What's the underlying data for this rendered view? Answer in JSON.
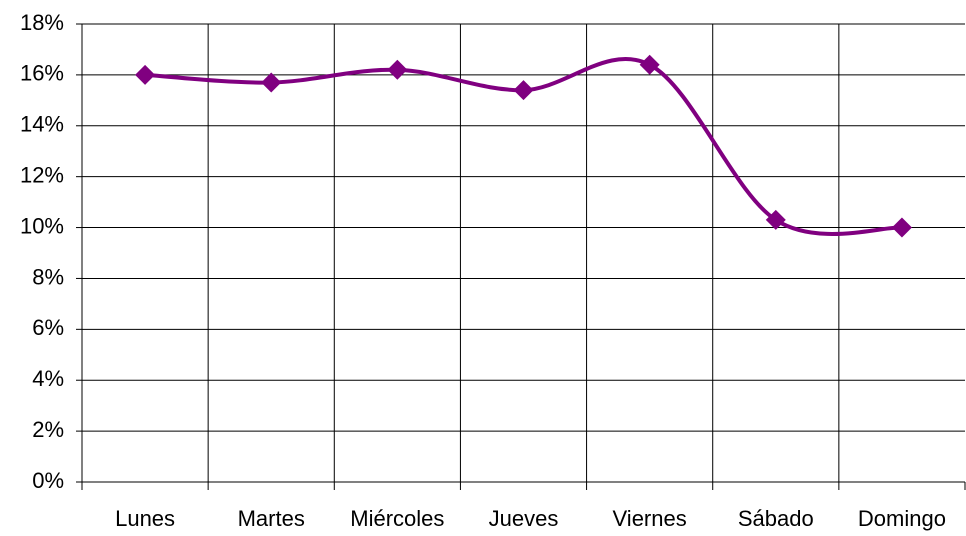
{
  "chart_data": {
    "type": "line",
    "categories": [
      "Lunes",
      "Martes",
      "Miércoles",
      "Jueves",
      "Viernes",
      "Sábado",
      "Domingo"
    ],
    "values": [
      16,
      15.7,
      16.2,
      15.4,
      16.4,
      10.3,
      10
    ],
    "color": "#800080",
    "smooth": true,
    "marker": "diamond",
    "ylim": [
      0,
      18
    ],
    "yticks": [
      {
        "value": 0,
        "label": "0%"
      },
      {
        "value": 2,
        "label": "2%"
      },
      {
        "value": 4,
        "label": "4%"
      },
      {
        "value": 6,
        "label": "6%"
      },
      {
        "value": 8,
        "label": "8%"
      },
      {
        "value": 10,
        "label": "10%"
      },
      {
        "value": 12,
        "label": "12%"
      },
      {
        "value": 14,
        "label": "14%"
      },
      {
        "value": 16,
        "label": "16%"
      },
      {
        "value": 18,
        "label": "18%"
      }
    ],
    "grid": true
  }
}
